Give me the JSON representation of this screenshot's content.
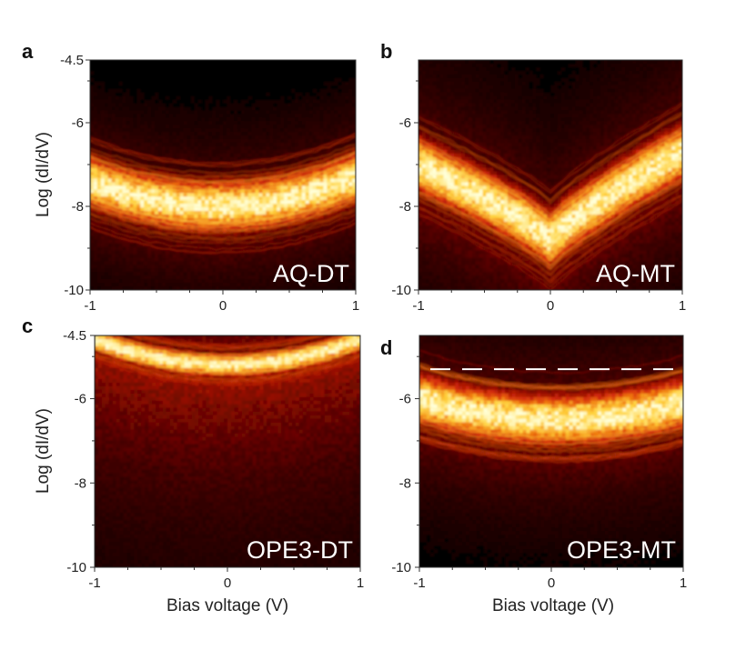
{
  "colors": {
    "background": "#000000",
    "colormap": [
      "#000000",
      "#3a0000",
      "#8b0a00",
      "#d2290a",
      "#f07a10",
      "#ffd23c",
      "#ffffd8"
    ],
    "dashed_line": "#ffffff",
    "inset_label": "#ffffff"
  },
  "chart_data": [
    {
      "panel": "a",
      "type": "heatmap",
      "label": "AQ-DT",
      "ylabel": "Log (dI/dV)",
      "xlabel": "",
      "xlim": [
        -1,
        1
      ],
      "ylim": [
        -10,
        -4.5
      ],
      "x_ticks": [
        -1,
        0,
        1
      ],
      "y_ticks": [
        -4.5,
        -6,
        -8,
        -10
      ],
      "y_tick_labels": [
        "-4.5",
        "-6",
        "-8",
        "-10"
      ],
      "band": {
        "shape": "parabolic",
        "center_at_minus1": -7.4,
        "center_at_0": -8.0,
        "center_at_plus1": -7.3,
        "width": 0.45,
        "spread": 1.5
      }
    },
    {
      "panel": "b",
      "type": "heatmap",
      "label": "AQ-MT",
      "ylabel": "",
      "xlabel": "",
      "xlim": [
        -1,
        1
      ],
      "ylim": [
        -10,
        -4.5
      ],
      "x_ticks": [
        -1,
        0,
        1
      ],
      "y_ticks": [
        -6,
        -8,
        -10
      ],
      "y_tick_labels": [
        "-6",
        "-8",
        "-10"
      ],
      "band": {
        "shape": "v-shape",
        "center_at_minus1": -7.0,
        "center_at_0": -8.8,
        "center_at_plus1": -6.7,
        "width": 0.5,
        "spread": 2.2
      }
    },
    {
      "panel": "c",
      "type": "heatmap",
      "label": "OPE3-DT",
      "ylabel": "Log (dI/dV)",
      "xlabel": "Bias voltage (V)",
      "xlim": [
        -1,
        1
      ],
      "ylim": [
        -10,
        -4.5
      ],
      "x_ticks": [
        -1,
        0,
        1
      ],
      "y_ticks": [
        -4.5,
        -6,
        -8,
        -10
      ],
      "y_tick_labels": [
        "-4.5",
        "-6",
        "-8",
        "-10"
      ],
      "band": {
        "shape": "parabolic",
        "center_at_minus1": -4.6,
        "center_at_0": -5.2,
        "center_at_plus1": -4.6,
        "width": 0.2,
        "spread": 3.5
      }
    },
    {
      "panel": "d",
      "type": "heatmap",
      "label": "OPE3-MT",
      "ylabel": "",
      "xlabel": "Bias voltage (V)",
      "xlim": [
        -1,
        1
      ],
      "ylim": [
        -10,
        -4.5
      ],
      "x_ticks": [
        -1,
        0,
        1
      ],
      "y_ticks": [
        -6,
        -8,
        -10
      ],
      "y_tick_labels": [
        "-6",
        "-8",
        "-10"
      ],
      "band": {
        "shape": "parabolic",
        "center_at_minus1": -6.0,
        "center_at_0": -6.5,
        "center_at_plus1": -6.1,
        "width": 0.45,
        "spread": 1.8
      },
      "dashed_line_y": -5.3
    }
  ]
}
